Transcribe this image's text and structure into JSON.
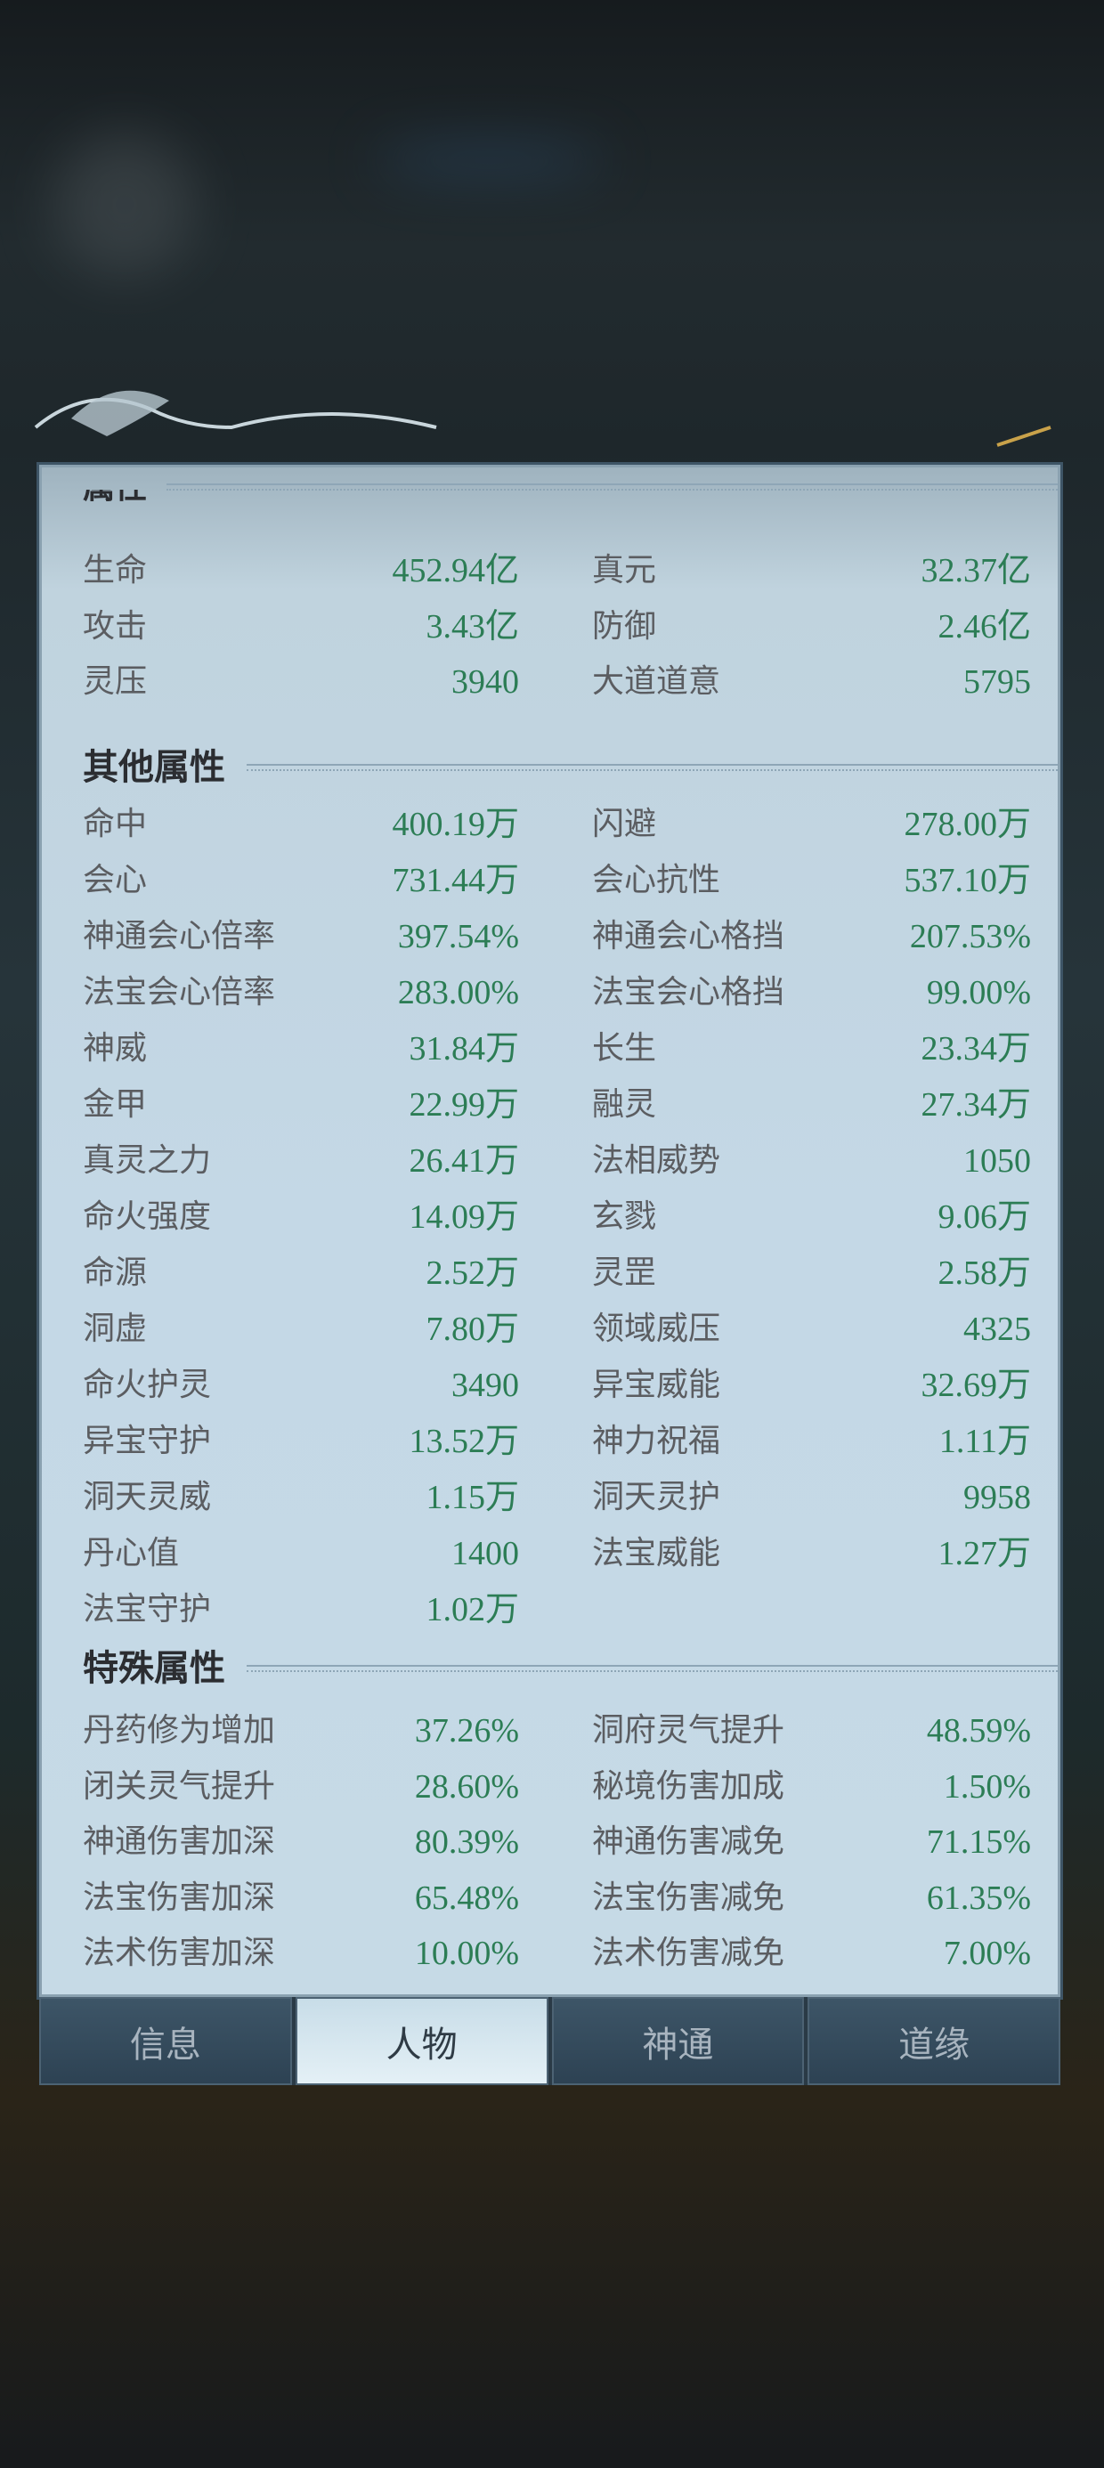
{
  "basic_section": {
    "title": "属性",
    "rows": [
      {
        "l": "生命",
        "lv": "452.94亿",
        "r": "真元",
        "rv": "32.37亿"
      },
      {
        "l": "攻击",
        "lv": "3.43亿",
        "r": "防御",
        "rv": "2.46亿"
      },
      {
        "l": "灵压",
        "lv": "3940",
        "r": "大道道意",
        "rv": "5795"
      }
    ]
  },
  "other_section": {
    "title": "其他属性",
    "rows": [
      {
        "l": "命中",
        "lv": "400.19万",
        "r": "闪避",
        "rv": "278.00万"
      },
      {
        "l": "会心",
        "lv": "731.44万",
        "r": "会心抗性",
        "rv": "537.10万"
      },
      {
        "l": "神通会心倍率",
        "lv": "397.54%",
        "r": "神通会心格挡",
        "rv": "207.53%"
      },
      {
        "l": "法宝会心倍率",
        "lv": "283.00%",
        "r": "法宝会心格挡",
        "rv": "99.00%"
      },
      {
        "l": "神威",
        "lv": "31.84万",
        "r": "长生",
        "rv": "23.34万"
      },
      {
        "l": "金甲",
        "lv": "22.99万",
        "r": "融灵",
        "rv": "27.34万"
      },
      {
        "l": "真灵之力",
        "lv": "26.41万",
        "r": "法相威势",
        "rv": "1050"
      },
      {
        "l": "命火强度",
        "lv": "14.09万",
        "r": "玄戮",
        "rv": "9.06万"
      },
      {
        "l": "命源",
        "lv": "2.52万",
        "r": "灵罡",
        "rv": "2.58万"
      },
      {
        "l": "洞虚",
        "lv": "7.80万",
        "r": "领域威压",
        "rv": "4325"
      },
      {
        "l": "命火护灵",
        "lv": "3490",
        "r": "异宝威能",
        "rv": "32.69万"
      },
      {
        "l": "异宝守护",
        "lv": "13.52万",
        "r": "神力祝福",
        "rv": "1.11万"
      },
      {
        "l": "洞天灵威",
        "lv": "1.15万",
        "r": "洞天灵护",
        "rv": "9958"
      },
      {
        "l": "丹心值",
        "lv": "1400",
        "r": "法宝威能",
        "rv": "1.27万"
      },
      {
        "l": "法宝守护",
        "lv": "1.02万",
        "r": "",
        "rv": ""
      }
    ]
  },
  "special_section": {
    "title": "特殊属性",
    "rows": [
      {
        "l": "丹药修为增加",
        "lv": "37.26%",
        "r": "洞府灵气提升",
        "rv": "48.59%"
      },
      {
        "l": "闭关灵气提升",
        "lv": "28.60%",
        "r": "秘境伤害加成",
        "rv": "1.50%"
      },
      {
        "l": "神通伤害加深",
        "lv": "80.39%",
        "r": "神通伤害减免",
        "rv": "71.15%"
      },
      {
        "l": "法宝伤害加深",
        "lv": "65.48%",
        "r": "法宝伤害减免",
        "rv": "61.35%"
      },
      {
        "l": "法术伤害加深",
        "lv": "10.00%",
        "r": "法术伤害减免",
        "rv": "7.00%"
      }
    ]
  },
  "tabs": [
    {
      "label": "信息"
    },
    {
      "label": "人物",
      "active": true
    },
    {
      "label": "神通"
    },
    {
      "label": "道缘"
    }
  ],
  "colors": {
    "value": "#2c7d55",
    "label": "#5b5d61",
    "panel": "#c4d8e6"
  }
}
